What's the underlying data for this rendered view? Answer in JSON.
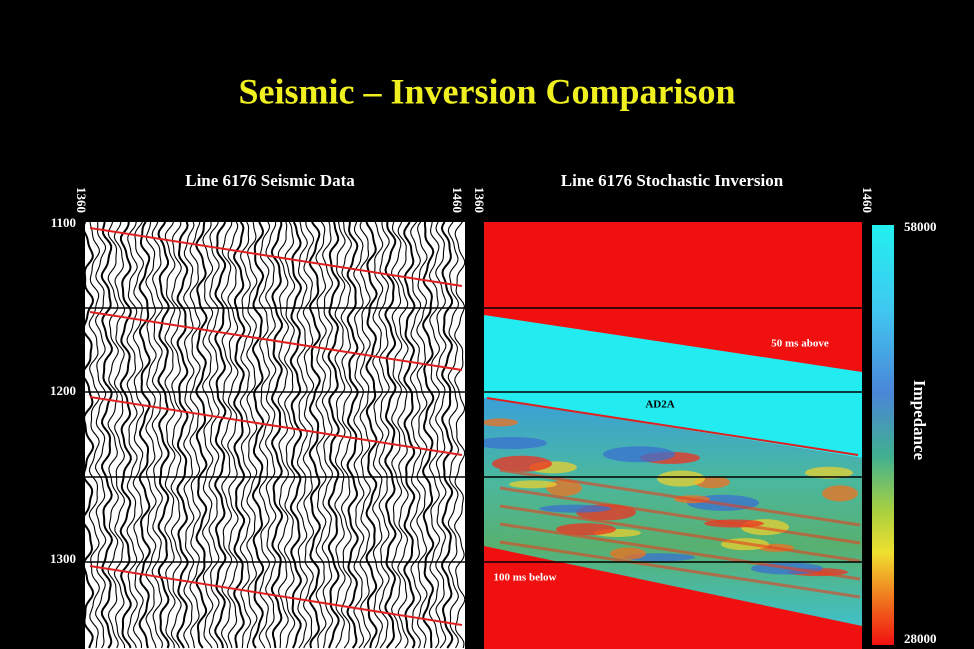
{
  "title": "Seismic – Inversion Comparison",
  "left_panel": {
    "title": "Line 6176 Seismic Data",
    "top_labels": [
      "1360",
      "1460"
    ],
    "side_labels": [
      "1100",
      "1200",
      "1300"
    ]
  },
  "right_panel": {
    "title": "Line 6176 Stochastic Inversion",
    "top_labels": [
      "1360",
      "1460"
    ],
    "annotations": [
      "50 ms above",
      "AD2A",
      "100 ms below"
    ]
  },
  "colorbar": {
    "label": "Impedance",
    "max_label": "58000",
    "min_label": "28000"
  }
}
